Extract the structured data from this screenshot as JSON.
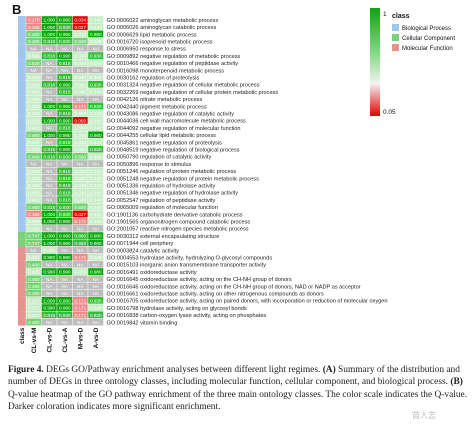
{
  "panel_label": "B",
  "columns": [
    "class",
    "CL-vs-M",
    "CL-vs-D",
    "CL-vs-A",
    "M-vs-D",
    "A-vs-D"
  ],
  "legend": {
    "title": "class",
    "classes": [
      {
        "name": "Biological Process",
        "color": "#9fc6ec"
      },
      {
        "name": "Cellular Component",
        "color": "#79d27a"
      },
      {
        "name": "Molecular Function",
        "color": "#ee8f8f"
      }
    ],
    "scale_max": "1",
    "scale_min": "0.05"
  },
  "rows": [
    {
      "term": "GO:0006022 aminoglycan metabolic process",
      "cls": "BP",
      "vals": [
        "0.170",
        "1.000",
        "0.990",
        "0.034",
        "0.340"
      ]
    },
    {
      "term": "GO:0006026 aminoglycan catabolic process",
      "cls": "BP",
      "vals": [
        "0.155",
        "1.000",
        "0.930",
        "0.027",
        "0.340"
      ]
    },
    {
      "term": "GO:0006629 lipid metabolic process",
      "cls": "BP",
      "vals": [
        "0.480",
        "1.000",
        "0.990",
        "0.410",
        "0.980"
      ]
    },
    {
      "term": "GO:0016720 isoprenoid metabolic process",
      "cls": "BP",
      "vals": [
        "0.480",
        "0.818",
        "0.930",
        "0.500",
        "0.340"
      ]
    },
    {
      "term": "GO:0006950 response to stress",
      "cls": "BP",
      "vals": [
        "NA",
        "NA",
        "NA",
        "NA",
        "NA"
      ]
    },
    {
      "term": "GO:0009892 negative regulation of metabolic process",
      "cls": "BP",
      "vals": [
        "0.400",
        "0.818",
        "0.990",
        "0.340",
        "0.930"
      ]
    },
    {
      "term": "GO:0010466 negative regulation of peptidase activity",
      "cls": "BP",
      "vals": [
        "0.520",
        "NA",
        "0.818",
        "0.340",
        "0.340"
      ]
    },
    {
      "term": "GO:0016098 monoterpenoid metabolic process",
      "cls": "BP",
      "vals": [
        "NA",
        "NA",
        "NA",
        "NA",
        "NA"
      ]
    },
    {
      "term": "GO:0030162 regulation of proteolysis",
      "cls": "BP",
      "vals": [
        "0.400",
        "NA",
        "0.818",
        "0.340",
        "0.340"
      ]
    },
    {
      "term": "GO:0031324 negative regulation of cellular metabolic process",
      "cls": "BP",
      "vals": [
        "0.400",
        "0.818",
        "0.990",
        "0.340",
        "0.930"
      ]
    },
    {
      "term": "GO:0032269 negative regulation of cellular protein metabolic process",
      "cls": "BP",
      "vals": [
        "0.400",
        "NA",
        "0.818",
        "0.340",
        "0.340"
      ]
    },
    {
      "term": "GO:0042126 nitrate metabolic process",
      "cls": "BP",
      "vals": [
        "0.390",
        "NA",
        "NA",
        "NA",
        "NA"
      ]
    },
    {
      "term": "GO:0042440 pigment metabolic process",
      "cls": "BP",
      "vals": [
        "0.350",
        "1.000",
        "0.990",
        "0.171",
        "0.930"
      ]
    },
    {
      "term": "GO:0043086 negative regulation of catalytic activity",
      "cls": "BP",
      "vals": [
        "0.400",
        "NA",
        "0.818",
        "0.340",
        "0.340"
      ]
    },
    {
      "term": "GO:0044036 cell wall macromolecule metabolic process",
      "cls": "BP",
      "vals": [
        "0.200",
        "1.000",
        "0.990",
        "0.050",
        "0.340"
      ]
    },
    {
      "term": "GO:0044092 negative regulation of molecular function",
      "cls": "BP",
      "vals": [
        "0.400",
        "NA",
        "0.818",
        "0.340",
        "0.340"
      ]
    },
    {
      "term": "GO:0044255 cellular lipid metabolic process",
      "cls": "BP",
      "vals": [
        "0.480",
        "1.000",
        "0.990",
        "0.410",
        "0.980"
      ]
    },
    {
      "term": "GO:0045861 negative regulation of proteolysis",
      "cls": "BP",
      "vals": [
        "0.400",
        "NA",
        "0.818",
        "0.340",
        "0.340"
      ]
    },
    {
      "term": "GO:0048519 negative regulation of biological process",
      "cls": "BP",
      "vals": [
        "0.400",
        "0.818",
        "0.990",
        "0.340",
        "0.930"
      ]
    },
    {
      "term": "GO:0050790 regulation of catalytic activity",
      "cls": "BP",
      "vals": [
        "0.480",
        "0.818",
        "0.930",
        "0.500",
        "0.340"
      ]
    },
    {
      "term": "GO:0050896 response to stimulus",
      "cls": "BP",
      "vals": [
        "NA",
        "NA",
        "NA",
        "NA",
        "NA"
      ]
    },
    {
      "term": "GO:0051246 regulation of protein metabolic process",
      "cls": "BP",
      "vals": [
        "0.400",
        "NA",
        "0.818",
        "0.340",
        "0.340"
      ]
    },
    {
      "term": "GO:0051248 negative regulation of protein metabolic process",
      "cls": "BP",
      "vals": [
        "0.400",
        "NA",
        "0.818",
        "0.340",
        "0.340"
      ]
    },
    {
      "term": "GO:0051336 regulation of hydrolase activity",
      "cls": "BP",
      "vals": [
        "0.400",
        "NA",
        "0.818",
        "0.340",
        "0.340"
      ]
    },
    {
      "term": "GO:0051346 negative regulation of hydrolase activity",
      "cls": "BP",
      "vals": [
        "0.400",
        "NA",
        "0.818",
        "0.340",
        "0.340"
      ]
    },
    {
      "term": "GO:0052547 regulation of peptidase activity",
      "cls": "BP",
      "vals": [
        "0.400",
        "NA",
        "0.818",
        "0.340",
        "0.340"
      ]
    },
    {
      "term": "GO:0065009 regulation of molecular function",
      "cls": "BP",
      "vals": [
        "0.480",
        "0.818",
        "0.930",
        "0.500",
        "0.340"
      ]
    },
    {
      "term": "GO:1901136 carbohydrate derivative catabolic process",
      "cls": "BP",
      "vals": [
        "0.155",
        "1.000",
        "0.930",
        "0.027",
        "0.340"
      ]
    },
    {
      "term": "GO:1901565 organonitrogen compound catabolic process",
      "cls": "BP",
      "vals": [
        "0.200",
        "1.000",
        "0.990",
        "0.171",
        "0.340"
      ]
    },
    {
      "term": "GO:2001057 reactive nitrogen species metabolic process",
      "cls": "BP",
      "vals": [
        "0.390",
        "NA",
        "NA",
        "NA",
        "NA"
      ]
    },
    {
      "term": "GO:0030312 external encapsulating structure",
      "cls": "CC",
      "vals": [
        "0.747",
        "1.000",
        "0.990",
        "0.860",
        "0.980"
      ]
    },
    {
      "term": "GO:0071944 cell periphery",
      "cls": "CC",
      "vals": [
        "0.747",
        "1.000",
        "0.990",
        "0.860",
        "0.980"
      ]
    },
    {
      "term": "GO:0003824 catalytic activity",
      "cls": "MF",
      "vals": [
        "NA",
        "0.405",
        "NA",
        "NA",
        "NA"
      ]
    },
    {
      "term": "GO:0004553 hydrolase activity, hydrolyzing O-glycosyl compounds",
      "cls": "MF",
      "vals": [
        "0.347",
        "0.990",
        "0.990",
        "0.171",
        "0.340"
      ]
    },
    {
      "term": "GO:0015103 inorganic anion transmembrane transporter activity",
      "cls": "MF",
      "vals": [
        "0.480",
        "NA",
        "NA",
        "NA",
        "NA"
      ]
    },
    {
      "term": "GO:0016491 oxidoreductase activity",
      "cls": "MF",
      "vals": [
        "0.405",
        "0.990",
        "0.990",
        "0.405",
        "0.980"
      ]
    },
    {
      "term": "GO:0016645 oxidoreductase activity, acting on the CH-NH group of donors",
      "cls": "MF",
      "vals": [
        "0.480",
        "NA",
        "NA",
        "NA",
        "NA"
      ]
    },
    {
      "term": "GO:0016646 oxidoreductase activity, acting on the CH-NH group of donors, NAD or NADP as acceptor",
      "cls": "MF",
      "vals": [
        "0.480",
        "NA",
        "NA",
        "NA",
        "NA"
      ]
    },
    {
      "term": "GO:0016661 oxidoreductase activity, acting on other nitrogenous compounds as donors",
      "cls": "MF",
      "vals": [
        "0.480",
        "NA",
        "NA",
        "NA",
        "NA"
      ]
    },
    {
      "term": "GO:0016705 oxidoreductase activity, acting on paired donors, with incorporation or reduction of molecular oxygen",
      "cls": "MF",
      "vals": [
        "0.347",
        "1.000",
        "0.990",
        "0.171",
        "0.930"
      ]
    },
    {
      "term": "GO:0016798 hydrolase activity, acting on glycosyl bonds",
      "cls": "MF",
      "vals": [
        "0.347",
        "0.990",
        "0.990",
        "0.171",
        "0.340"
      ]
    },
    {
      "term": "GO:0016838 carbon-oxygen lyase activity, acting on phosphates",
      "cls": "MF",
      "vals": [
        "0.347",
        "0.818",
        "0.930",
        "0.171",
        "0.930"
      ]
    },
    {
      "term": "GO:0019842 vitamin binding",
      "cls": "MF",
      "vals": [
        "0.480",
        "NA",
        "NA",
        "NA",
        "NA"
      ]
    }
  ],
  "caption": {
    "fig": "Figure 4.",
    "title": "DEGs GO/Pathway enrichment analyses between different light regimes. ",
    "a_label": "(A)",
    "a_text": " Summary of the distribution and number of DEGs in three ontology classes, including molecular function, cellular component, and biological process. ",
    "b_label": "(B)",
    "b_text": " Q-value heatmap of the GO pathway enrichment of the three main ontology classes. The color scale indicates the Q-value. Darker coloration indicates more significant enrichment."
  },
  "watermark": "苗人志"
}
